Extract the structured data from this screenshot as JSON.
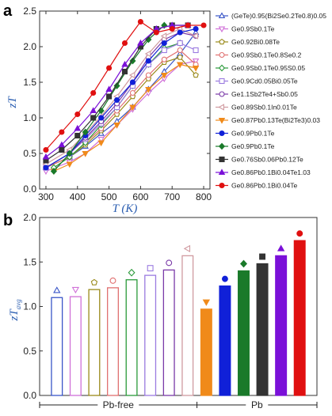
{
  "panel_a_label": "a",
  "panel_b_label": "b",
  "chart_data": [
    {
      "type": "line",
      "ylabel": "zT",
      "xlabel": "T (K)",
      "xlim": [
        280,
        820
      ],
      "ylim": [
        0,
        2.5
      ],
      "xticks": [
        300,
        400,
        500,
        600,
        700,
        800
      ],
      "yticks": [
        0.0,
        0.5,
        1.0,
        1.5,
        2.0,
        2.5
      ],
      "legend_position": "right",
      "series": [
        {
          "name": "(GeTe)0.95(Bi2Se0.2Te0.8)0.05",
          "color": "#3a56c8",
          "marker": "triangle-up-open",
          "x": [
            300,
            375,
            425,
            475,
            525,
            575,
            625,
            675,
            725,
            775
          ],
          "y": [
            0.3,
            0.45,
            0.6,
            0.78,
            0.95,
            1.15,
            1.4,
            1.65,
            1.9,
            2.2
          ]
        },
        {
          "name": "Ge0.9Sb0.1Te",
          "color": "#d070d8",
          "marker": "triangle-down-open",
          "x": [
            300,
            375,
            425,
            475,
            525,
            575,
            625,
            675,
            725,
            775
          ],
          "y": [
            0.25,
            0.38,
            0.5,
            0.7,
            0.9,
            1.12,
            1.35,
            1.55,
            1.75,
            1.8
          ]
        },
        {
          "name": "Ge0.92Bi0.08Te",
          "color": "#9a8a1a",
          "marker": "pentagon-open",
          "x": [
            300,
            375,
            425,
            475,
            525,
            575,
            625,
            675,
            725,
            775
          ],
          "y": [
            0.3,
            0.45,
            0.62,
            0.82,
            1.05,
            1.3,
            1.55,
            1.78,
            1.85,
            1.6
          ]
        },
        {
          "name": "Ge0.9Sb0.1Te0.8Se0.2",
          "color": "#e07070",
          "marker": "circle-open",
          "x": [
            300,
            375,
            425,
            475,
            525,
            575,
            625,
            675,
            725,
            775
          ],
          "y": [
            0.3,
            0.45,
            0.65,
            0.85,
            1.1,
            1.35,
            1.6,
            1.82,
            1.95,
            1.75
          ]
        },
        {
          "name": "Ge0.9Sb0.1Te0.95S0.05",
          "color": "#2a9a3a",
          "marker": "diamond-open",
          "x": [
            325,
            375,
            425,
            475,
            525,
            575,
            625,
            675,
            725
          ],
          "y": [
            0.3,
            0.45,
            0.65,
            0.9,
            1.15,
            1.45,
            1.75,
            1.98,
            2.05
          ]
        },
        {
          "name": "Ge0.9Cd0.05Bi0.05Te",
          "color": "#9a7ae0",
          "marker": "square-open",
          "x": [
            300,
            375,
            425,
            475,
            525,
            575,
            625,
            675,
            725,
            775
          ],
          "y": [
            0.3,
            0.5,
            0.7,
            0.92,
            1.15,
            1.45,
            1.75,
            1.95,
            2.05,
            1.95
          ]
        },
        {
          "name": "Ge1.1Sb2Te4+Sb0.05",
          "color": "#7a3aa8",
          "marker": "circle-open",
          "x": [
            300,
            375,
            425,
            475,
            525,
            575,
            625,
            675,
            725,
            775
          ],
          "y": [
            0.3,
            0.5,
            0.72,
            0.95,
            1.2,
            1.5,
            1.85,
            2.1,
            2.2,
            2.15
          ]
        },
        {
          "name": "Ge0.89Sb0.1In0.01Te",
          "color": "#d09aa0",
          "marker": "triangle-left-open",
          "x": [
            300,
            375,
            425,
            475,
            525,
            575,
            625,
            675,
            725,
            775
          ],
          "y": [
            0.35,
            0.55,
            0.78,
            1.02,
            1.3,
            1.6,
            1.9,
            2.15,
            2.25,
            2.15
          ]
        },
        {
          "name": "Ge0.87Pb0.13Te(Bi2Te3)0.03",
          "color": "#f08a1a",
          "marker": "triangle-down",
          "x": [
            325,
            375,
            425,
            475,
            525,
            575,
            625,
            675,
            725,
            775
          ],
          "y": [
            0.25,
            0.35,
            0.5,
            0.65,
            0.9,
            1.15,
            1.4,
            1.6,
            1.75,
            1.7
          ]
        },
        {
          "name": "Ge0.9Pb0.1Te",
          "color": "#1020d8",
          "marker": "circle",
          "x": [
            300,
            375,
            425,
            475,
            525,
            575,
            625,
            675,
            725,
            775
          ],
          "y": [
            0.3,
            0.5,
            0.75,
            1.0,
            1.25,
            1.5,
            1.8,
            2.05,
            2.2,
            2.25
          ]
        },
        {
          "name": "Ge0.9Pb0.1Te",
          "color": "#1a7a2a",
          "marker": "diamond",
          "x": [
            325,
            375,
            425,
            475,
            525,
            575,
            625,
            675
          ],
          "y": [
            0.25,
            0.5,
            0.8,
            1.1,
            1.45,
            1.8,
            2.1,
            2.3
          ]
        },
        {
          "name": "Ge0.76Sb0.06Pb0.12Te",
          "color": "#333333",
          "marker": "square",
          "x": [
            300,
            350,
            400,
            450,
            500,
            550,
            600,
            650,
            700,
            750
          ],
          "y": [
            0.4,
            0.55,
            0.75,
            1.0,
            1.3,
            1.65,
            2.0,
            2.25,
            2.3,
            2.3
          ]
        },
        {
          "name": "Ge0.86Pb0.1Bi0.04Te1.03",
          "color": "#7a10d8",
          "marker": "triangle-up",
          "x": [
            300,
            350,
            400,
            450,
            500,
            550,
            600,
            650,
            700,
            750
          ],
          "y": [
            0.45,
            0.62,
            0.85,
            1.1,
            1.4,
            1.75,
            2.05,
            2.25,
            2.3,
            2.3
          ]
        },
        {
          "name": "Ge0.86Pb0.1Bi0.04Te",
          "color": "#e01010",
          "marker": "circle",
          "x": [
            300,
            350,
            400,
            450,
            500,
            550,
            600,
            650,
            700,
            750,
            800
          ],
          "y": [
            0.55,
            0.8,
            1.05,
            1.35,
            1.7,
            2.05,
            2.35,
            2.2,
            2.25,
            2.3,
            2.3
          ]
        }
      ]
    },
    {
      "type": "bar",
      "ylabel": "zTavg",
      "ylim": [
        0,
        2.0
      ],
      "yticks": [
        0.0,
        0.5,
        1.0,
        1.5,
        2.0
      ],
      "groups": [
        "Pb-free",
        "Pb"
      ],
      "bars": [
        {
          "value": 1.1,
          "color": "#3a56c8",
          "fill": false,
          "marker": "triangle-up-open",
          "group": "Pb-free"
        },
        {
          "value": 1.11,
          "color": "#d070d8",
          "fill": false,
          "marker": "triangle-down-open",
          "group": "Pb-free"
        },
        {
          "value": 1.19,
          "color": "#9a8a1a",
          "fill": false,
          "marker": "pentagon-open",
          "group": "Pb-free"
        },
        {
          "value": 1.21,
          "color": "#e07070",
          "fill": false,
          "marker": "circle-open",
          "group": "Pb-free"
        },
        {
          "value": 1.3,
          "color": "#2a9a3a",
          "fill": false,
          "marker": "diamond-open",
          "group": "Pb-free"
        },
        {
          "value": 1.35,
          "color": "#9a7ae0",
          "fill": false,
          "marker": "square-open",
          "group": "Pb-free"
        },
        {
          "value": 1.41,
          "color": "#7a3aa8",
          "fill": false,
          "marker": "circle-open",
          "group": "Pb-free"
        },
        {
          "value": 1.57,
          "color": "#d09aa0",
          "fill": false,
          "marker": "triangle-left-open",
          "group": "Pb-free"
        },
        {
          "value": 0.97,
          "color": "#f08a1a",
          "fill": true,
          "marker": "triangle-down",
          "group": "Pb"
        },
        {
          "value": 1.23,
          "color": "#1020d8",
          "fill": true,
          "marker": "circle",
          "group": "Pb"
        },
        {
          "value": 1.4,
          "color": "#1a7a2a",
          "fill": true,
          "marker": "diamond",
          "group": "Pb"
        },
        {
          "value": 1.48,
          "color": "#333333",
          "fill": true,
          "marker": "square",
          "group": "Pb"
        },
        {
          "value": 1.57,
          "color": "#7a10d8",
          "fill": true,
          "marker": "triangle-up",
          "group": "Pb"
        },
        {
          "value": 1.74,
          "color": "#e01010",
          "fill": true,
          "marker": "circle",
          "group": "Pb"
        }
      ]
    }
  ]
}
